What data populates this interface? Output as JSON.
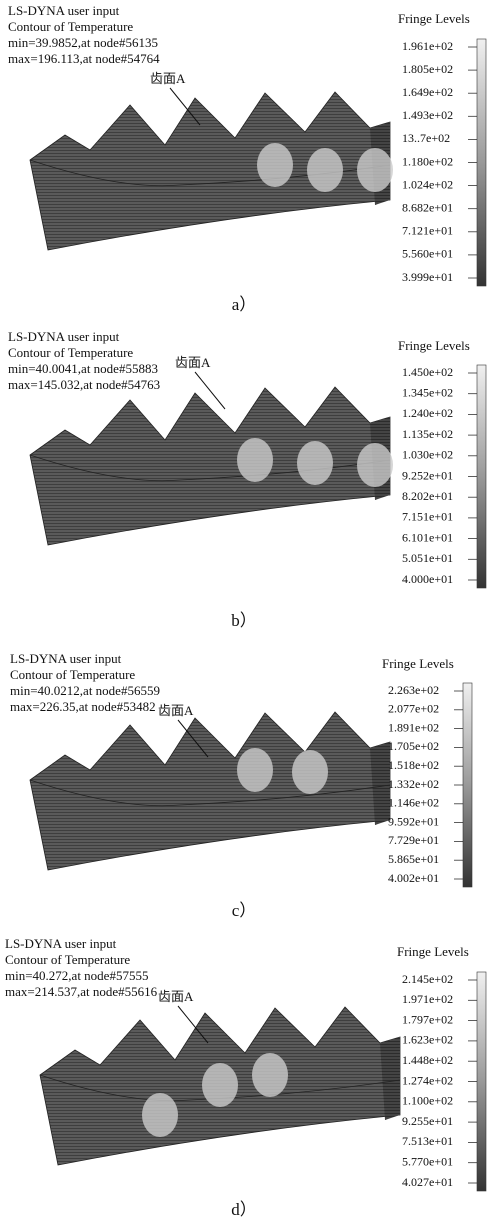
{
  "panels": [
    {
      "header": [
        "LS-DYNA user input",
        "Contour of Temperature",
        "min=39.9852,at node#56135",
        "max=196.113,at node#54764"
      ],
      "fringe_title": "Fringe Levels",
      "levels": [
        "1.961e+02",
        "1.805e+02",
        "1.649e+02",
        "1.493e+02",
        "13..7e+02",
        "1.180e+02",
        "1.024e+02",
        "8.682e+01",
        "7.121e+01",
        "5.560e+01",
        "3.999e+01"
      ],
      "annotation": "齿面A",
      "caption": "a）"
    },
    {
      "header": [
        "LS-DYNA user input",
        "Contour of Temperature",
        "min=40.0041,at node#55883",
        "max=145.032,at node#54763"
      ],
      "fringe_title": "Fringe Levels",
      "levels": [
        "1.450e+02",
        "1.345e+02",
        "1.240e+02",
        "1.135e+02",
        "1.030e+02",
        "9.252e+01",
        "8.202e+01",
        "7.151e+01",
        "6.101e+01",
        "5.051e+01",
        "4.000e+01"
      ],
      "annotation": "齿面A",
      "caption": "b）"
    },
    {
      "header": [
        "LS-DYNA user input",
        "Contour of Temperature",
        "min=40.0212,at node#56559",
        "max=226.35,at node#53482"
      ],
      "fringe_title": "Fringe Levels",
      "levels": [
        "2.263e+02",
        "2.077e+02",
        "1.891e+02",
        "1.705e+02",
        "1.518e+02",
        "1.332e+02",
        "1.146e+02",
        "9.592e+01",
        "7.729e+01",
        "5.865e+01",
        "4.002e+01"
      ],
      "annotation": "齿面A",
      "caption": "c）"
    },
    {
      "header": [
        "LS-DYNA user input",
        "Contour of Temperature",
        "min=40.272,at node#57555",
        "max=214.537,at node#55616"
      ],
      "fringe_title": "Fringe Levels",
      "levels": [
        "2.145e+02",
        "1.971e+02",
        "1.797e+02",
        "1.623e+02",
        "1.448e+02",
        "1.274e+02",
        "1.100e+02",
        "9.255e+01",
        "7.513e+01",
        "5.770e+01",
        "4.027e+01"
      ],
      "annotation": "齿面A",
      "caption": "d）"
    }
  ]
}
